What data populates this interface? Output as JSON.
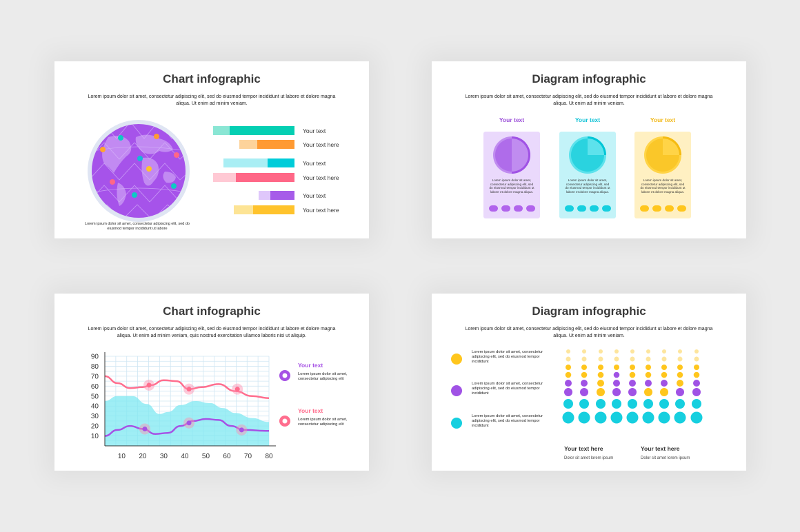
{
  "slide1": {
    "title": "Chart infographic",
    "description": "Lorem ipsum dolor sit amet, consectetur adipiscing elit, sed do eiusmod tempor incididunt ut labore et dolore magna aliqua. Ut enim ad minim veniam.",
    "globe_caption": "Lorem ipsum dolor sit amet, consectetur adipiscing elit, sed do eiusmod tempor incididunt ut labore",
    "bars": [
      {
        "label": "Your text",
        "light": "#8ae6d4",
        "dark": "#05cfb3",
        "fraction": 0.8
      },
      {
        "label": "Your text here",
        "light": "#fdd39b",
        "dark": "#ff9a32",
        "fraction": 0.68
      },
      {
        "label": "Your text",
        "light": "#a9eef4",
        "dark": "#00ccd9",
        "fraction": 0.38
      },
      {
        "label": "Your text here",
        "light": "#ffc9d4",
        "dark": "#ff6787",
        "fraction": 0.72
      },
      {
        "label": "Your text",
        "light": "#dfc7fb",
        "dark": "#a65ce9",
        "fraction": 0.67
      },
      {
        "label": "Your text here",
        "light": "#fde495",
        "dark": "#ffc32c",
        "fraction": 0.68
      }
    ]
  },
  "slide2": {
    "title": "Diagram infographic",
    "description": "Lorem ipsum dolor sit amet, consectetur adipiscing elit, sed do eiusmod tempor incididunt ut labore et dolore magna aliqua. Ut enim ad minim veniam.",
    "cards": [
      {
        "title": "Your text",
        "title_color": "#9b4fd8",
        "bg": "#ead9fc",
        "pie_light": "#c08cf0",
        "pie_dark": "#a052e5",
        "share": 0.5,
        "dot": "#b164ec",
        "text": "Lorem ipsum dolor sit amet, consectetur adipiscing elit, sed do eiusmod tempor incididunt ut labore et dolore magna aliqua."
      },
      {
        "title": "Your text",
        "title_color": "#10c2d6",
        "bg": "#c3f3f8",
        "pie_light": "#5de2ec",
        "pie_dark": "#00c6d6",
        "share": 0.25,
        "dot": "#16cfdf",
        "text": "Lorem ipsum dolor sit amet, consectetur adipiscing elit, sed do eiusmod tempor incididunt ut labore et dolore magna aliqua."
      },
      {
        "title": "Your text",
        "title_color": "#f2b91a",
        "bg": "#fff0c2",
        "pie_light": "#ffd447",
        "pie_dark": "#f5bb11",
        "share": 0.25,
        "dot": "#ffc61d",
        "text": "Lorem ipsum dolor sit amet, consectetur adipiscing elit, sed do eiusmod tempor incididunt ut labore et dolore magna aliqua."
      }
    ]
  },
  "slide3": {
    "title": "Chart infographic",
    "description": "Lorem ipsum dolor sit amet, consectetur adipiscing elit, sed do eiusmod tempor incididunt ut labore et dolore magna aliqua. Ut enim ad minim veniam, quis nostrud exercitation ullamco laboris nisi ut aliquip.",
    "legend": [
      {
        "title": "Your text",
        "color": "#a652e5",
        "text": "Lorem ipsum dolor sit amet, consectetur adipiscing elit"
      },
      {
        "title": "Your text",
        "color": "#ff6e8e",
        "text": "Lorem ipsum dolor sit amet, consectetur adipiscing elit"
      }
    ]
  },
  "chart_data": {
    "type": "line",
    "xlim": [
      2,
      80
    ],
    "ylim": [
      0,
      90
    ],
    "x_ticks": [
      10,
      20,
      30,
      40,
      50,
      60,
      70,
      80
    ],
    "y_ticks": [
      10,
      20,
      30,
      40,
      50,
      60,
      70,
      80,
      90
    ],
    "grid": true,
    "series": [
      {
        "kind": "area",
        "color": "#7fe8f2",
        "points": [
          [
            2,
            45
          ],
          [
            8,
            50
          ],
          [
            15,
            50
          ],
          [
            22,
            42
          ],
          [
            28,
            32
          ],
          [
            32,
            34
          ],
          [
            38,
            41
          ],
          [
            45,
            45
          ],
          [
            52,
            43
          ],
          [
            58,
            38
          ],
          [
            64,
            33
          ],
          [
            72,
            28
          ],
          [
            80,
            24
          ]
        ]
      },
      {
        "kind": "line",
        "color": "#ff6e8e",
        "points": [
          [
            2,
            70
          ],
          [
            8,
            63
          ],
          [
            14,
            58
          ],
          [
            20,
            59
          ],
          [
            24,
            61
          ],
          [
            30,
            66
          ],
          [
            36,
            65
          ],
          [
            42,
            57
          ],
          [
            48,
            59
          ],
          [
            56,
            62
          ],
          [
            64,
            55
          ],
          [
            72,
            50
          ],
          [
            80,
            48
          ]
        ],
        "markers": [
          [
            23,
            61
          ],
          [
            42,
            57
          ],
          [
            65,
            57
          ]
        ]
      },
      {
        "kind": "line",
        "color": "#a652e5",
        "points": [
          [
            2,
            10
          ],
          [
            8,
            16
          ],
          [
            14,
            20
          ],
          [
            20,
            17
          ],
          [
            26,
            12
          ],
          [
            32,
            13
          ],
          [
            38,
            20
          ],
          [
            44,
            25
          ],
          [
            50,
            27
          ],
          [
            56,
            26
          ],
          [
            62,
            20
          ],
          [
            68,
            16
          ],
          [
            80,
            15
          ]
        ],
        "markers": [
          [
            21,
            17
          ],
          [
            42,
            23
          ],
          [
            67,
            16
          ]
        ]
      }
    ]
  },
  "slide4": {
    "title": "Diagram infographic",
    "description": "Lorem ipsum dolor sit amet, consectetur adipiscing elit, sed do eiusmod tempor incididunt ut labore et dolore magna aliqua. Ut enim ad minim veniam.",
    "legend": [
      {
        "color": "#ffc61d",
        "text": "Lorem ipsum dolor sit amet, consectetur adipiscing elit, sed do eiusmod tempor incididunt"
      },
      {
        "color": "#a052e5",
        "text": "Lorem ipsum dolor sit amet, consectetur adipiscing elit, sed do eiusmod tempor incididunt"
      },
      {
        "color": "#16cfdf",
        "text": "Lorem ipsum dolor sit amet, consectetur adipiscing elit, sed do eiusmod tempor incididunt"
      }
    ],
    "colors": {
      "Y": "#ffc61d",
      "y": "#fde59d",
      "P": "#a052e5",
      "C": "#16cfdf"
    },
    "grid_rows": [
      "yyyyyyyyy",
      "yyyyyyyyy",
      "YYYYYYYYY",
      "YYYPYYYYY",
      "PPYPPPPYP",
      "PPYPPYYPP",
      "CCCCCCCCC",
      "CCCCCCCCC"
    ],
    "footer": [
      {
        "title": "Your text here",
        "subtitle": "Dolor sit amet lorem ipsum"
      },
      {
        "title": "Your text here",
        "subtitle": "Dolor sit amet lorem ipsum"
      }
    ]
  }
}
